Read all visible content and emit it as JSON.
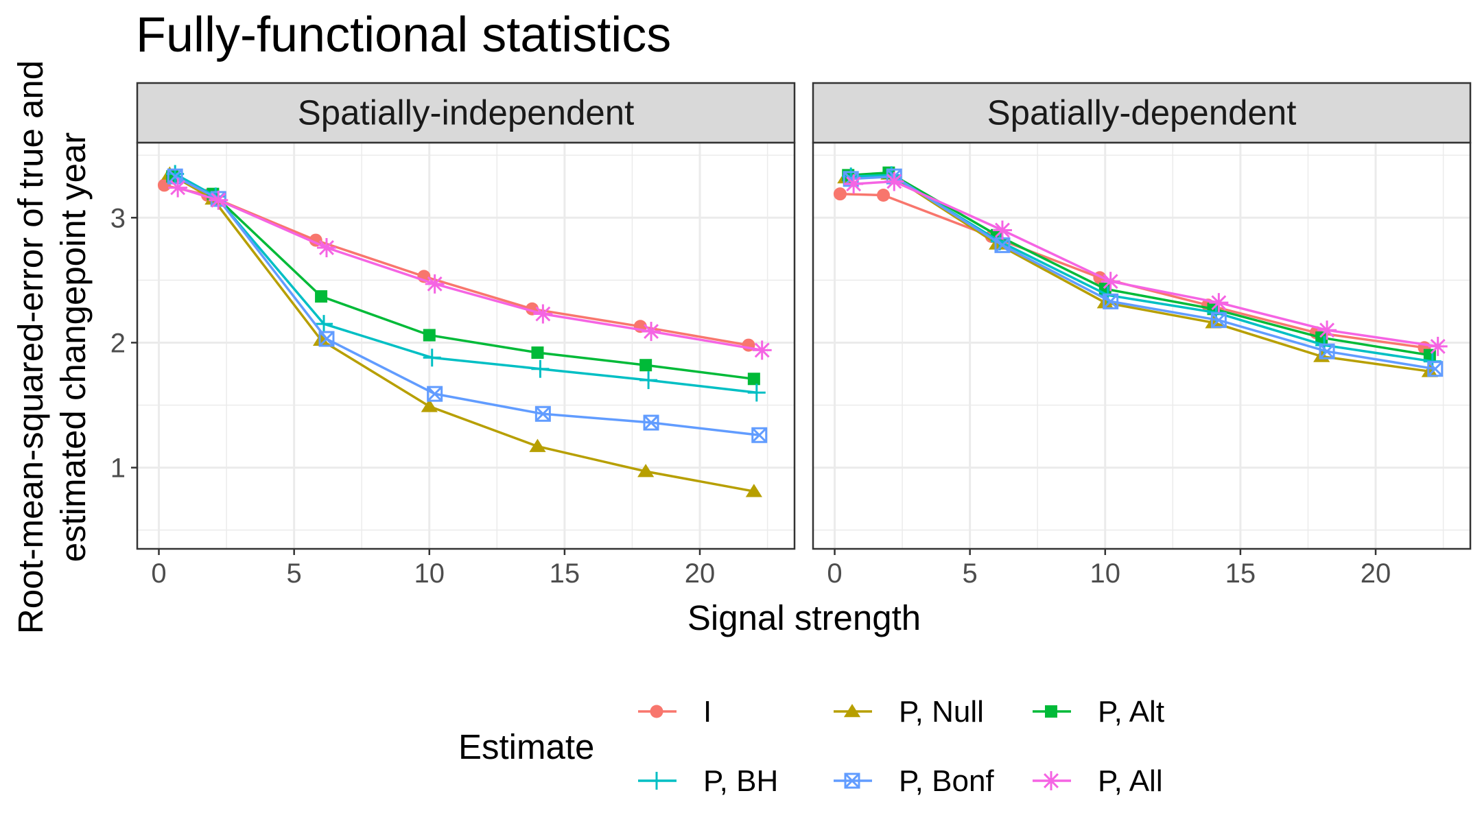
{
  "chart_data": {
    "type": "line",
    "title": "Fully-functional statistics",
    "xlabel": "Signal strength",
    "ylabel": [
      "Root-mean-squared-error of true and",
      "estimated changepoint year"
    ],
    "xlim": [
      -0.8,
      23.5
    ],
    "ylim": [
      0.35,
      3.6
    ],
    "xticks": [
      0,
      5,
      10,
      15,
      20
    ],
    "yticks": [
      1,
      2,
      3
    ],
    "grid": true,
    "legend": {
      "title": "Estimate",
      "position": "bottom",
      "entries": [
        {
          "label": "I",
          "series": "I"
        },
        {
          "label": "P, Null",
          "series": "P, Null"
        },
        {
          "label": "P, Alt",
          "series": "P, Alt"
        },
        {
          "label": "P, BH",
          "series": "P, BH"
        },
        {
          "label": "P, Bonf",
          "series": "P, Bonf"
        },
        {
          "label": "P, All",
          "series": "P, All"
        }
      ]
    },
    "series_style": {
      "I": {
        "color": "#F8766D",
        "marker": "circle"
      },
      "P, Null": {
        "color": "#B79F00",
        "marker": "triangle"
      },
      "P, Alt": {
        "color": "#00BA38",
        "marker": "square"
      },
      "P, BH": {
        "color": "#00BFC4",
        "marker": "plus"
      },
      "P, Bonf": {
        "color": "#619CFF",
        "marker": "boxcross"
      },
      "P, All": {
        "color": "#F564E3",
        "marker": "asterisk"
      }
    },
    "panels": [
      {
        "title": "Spatially-independent",
        "series": [
          {
            "name": "I",
            "x": [
              0.2,
              1.8,
              5.8,
              9.8,
              13.8,
              17.8,
              21.8
            ],
            "y": [
              3.26,
              3.18,
              2.82,
              2.53,
              2.27,
              2.13,
              1.98
            ]
          },
          {
            "name": "P, Null",
            "x": [
              0.4,
              2.0,
              6.0,
              10.0,
              14.0,
              18.0,
              22.0
            ],
            "y": [
              3.35,
              3.15,
              2.02,
              1.49,
              1.17,
              0.97,
              0.81
            ]
          },
          {
            "name": "P, Alt",
            "x": [
              0.5,
              2.0,
              6.0,
              10.0,
              14.0,
              18.0,
              22.0
            ],
            "y": [
              3.33,
              3.19,
              2.37,
              2.06,
              1.92,
              1.82,
              1.71
            ]
          },
          {
            "name": "P, BH",
            "x": [
              0.6,
              2.1,
              6.1,
              10.1,
              14.1,
              18.1,
              22.1
            ],
            "y": [
              3.35,
              3.17,
              2.15,
              1.88,
              1.79,
              1.7,
              1.6
            ]
          },
          {
            "name": "P, Bonf",
            "x": [
              0.6,
              2.2,
              6.2,
              10.2,
              14.2,
              18.2,
              22.2
            ],
            "y": [
              3.33,
              3.15,
              2.03,
              1.59,
              1.43,
              1.36,
              1.26
            ]
          },
          {
            "name": "P, All",
            "x": [
              0.7,
              2.2,
              6.2,
              10.2,
              14.2,
              18.2,
              22.3
            ],
            "y": [
              3.24,
              3.14,
              2.76,
              2.47,
              2.23,
              2.09,
              1.94
            ]
          }
        ]
      },
      {
        "title": "Spatially-dependent",
        "series": [
          {
            "name": "I",
            "x": [
              0.2,
              1.8,
              5.8,
              9.8,
              13.8,
              17.8,
              21.8
            ],
            "y": [
              3.19,
              3.18,
              2.85,
              2.52,
              2.3,
              2.08,
              1.96
            ]
          },
          {
            "name": "P, Null",
            "x": [
              0.4,
              2.0,
              6.0,
              10.0,
              14.0,
              18.0,
              22.0
            ],
            "y": [
              3.32,
              3.35,
              2.79,
              2.32,
              2.16,
              1.89,
              1.77
            ]
          },
          {
            "name": "P, Alt",
            "x": [
              0.5,
              2.0,
              6.0,
              10.0,
              14.0,
              18.0,
              22.0
            ],
            "y": [
              3.34,
              3.36,
              2.86,
              2.43,
              2.27,
              2.04,
              1.9
            ]
          },
          {
            "name": "P, BH",
            "x": [
              0.6,
              2.1,
              6.1,
              10.1,
              14.1,
              18.1,
              22.1
            ],
            "y": [
              3.33,
              3.34,
              2.81,
              2.38,
              2.24,
              1.98,
              1.85
            ]
          },
          {
            "name": "P, Bonf",
            "x": [
              0.6,
              2.2,
              6.2,
              10.2,
              14.2,
              18.2,
              22.2
            ],
            "y": [
              3.31,
              3.33,
              2.78,
              2.33,
              2.18,
              1.93,
              1.79
            ]
          },
          {
            "name": "P, All",
            "x": [
              0.7,
              2.2,
              6.2,
              10.2,
              14.2,
              18.2,
              22.3
            ],
            "y": [
              3.27,
              3.29,
              2.9,
              2.49,
              2.32,
              2.1,
              1.97
            ]
          }
        ]
      }
    ]
  }
}
